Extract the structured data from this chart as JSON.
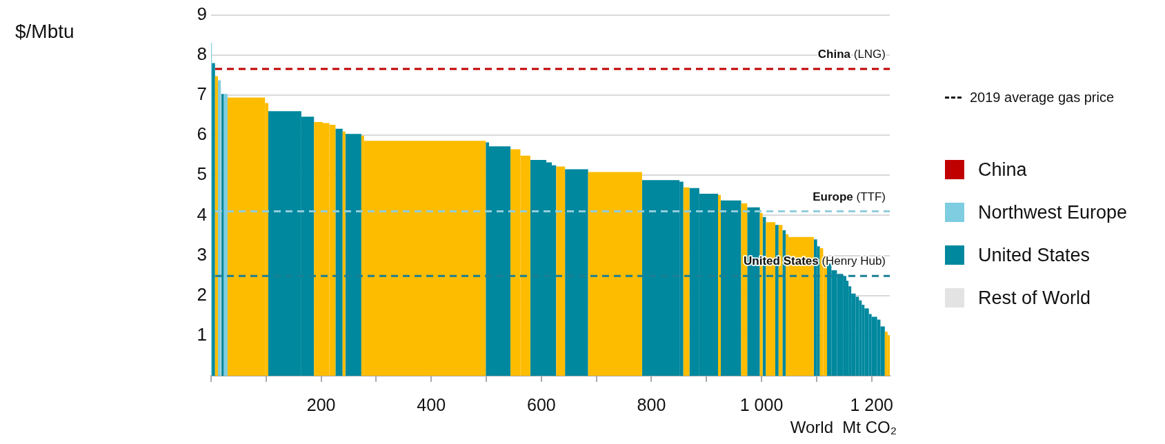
{
  "chart_data": {
    "type": "histogram",
    "annotations": [
      "$/Mbtu",
      "China"
    ],
    "xlabel": "World  Mt CO₂",
    "legend_title": "2019 average gas price",
    "legend": "right",
    "grid": "y",
    "bins": [
      0,
      1.5,
      7.2,
      12.5,
      17.5,
      18.5,
      23,
      30,
      98,
      104,
      164,
      187,
      203,
      215,
      226,
      239,
      244,
      273,
      278,
      499,
      505,
      544,
      562,
      580,
      609,
      619,
      627,
      643,
      685,
      783,
      851,
      858,
      869,
      887,
      921,
      926,
      963,
      974,
      997,
      1002,
      1008,
      1025,
      1031,
      1038,
      1044,
      1049,
      1095,
      1101,
      1106,
      1112,
      1119,
      1127,
      1137,
      1148,
      1154,
      1158,
      1163,
      1171,
      1177,
      1182,
      1187,
      1195,
      1200,
      1210,
      1216,
      1224,
      1229,
      1233
    ],
    "xlim": [
      0,
      1233
    ],
    "xticks": [
      {
        "value": 0,
        "label": null
      },
      {
        "value": 100,
        "label": null
      },
      200,
      {
        "value": 300,
        "label": null
      },
      400,
      {
        "value": 500,
        "label": null
      },
      600,
      {
        "value": 700,
        "label": null
      },
      800,
      {
        "value": 900,
        "label": null
      },
      {
        "value": 1000,
        "label": "1 000"
      },
      {
        "value": 1100,
        "label": null
      },
      {
        "value": 1200,
        "label": "1 200"
      }
    ],
    "ylim": [
      0,
      9
    ],
    "yticks": [
      1,
      2,
      3,
      4,
      5,
      6,
      7,
      8,
      9
    ],
    "series": [
      {
        "name": "Northwest Europe",
        "color": "#7ecde0",
        "values": [
          8.3,
          null,
          null,
          7.37,
          null,
          null,
          7.03,
          null,
          null,
          null,
          null,
          null,
          null,
          null,
          null,
          null,
          null,
          null,
          null,
          null,
          null,
          null,
          null,
          null,
          null,
          null,
          null,
          null,
          null,
          null,
          null,
          null,
          null,
          null,
          null,
          null,
          null,
          null,
          null,
          null,
          null,
          null,
          null,
          null,
          null,
          null,
          null,
          null,
          null,
          null,
          null,
          null,
          null,
          null,
          null,
          null,
          null,
          null,
          null,
          null,
          null,
          null,
          null,
          null,
          null,
          null,
          null
        ]
      },
      {
        "name": "United States",
        "color": "#00889e",
        "values": [
          null,
          7.8,
          null,
          null,
          null,
          7.03,
          null,
          null,
          null,
          6.6,
          6.46,
          null,
          null,
          null,
          6.16,
          null,
          6.03,
          null,
          null,
          5.82,
          5.72,
          null,
          null,
          5.38,
          5.32,
          5.25,
          null,
          5.15,
          null,
          4.88,
          4.84,
          null,
          4.68,
          4.54,
          null,
          4.37,
          null,
          4.2,
          null,
          3.96,
          null,
          3.76,
          null,
          3.63,
          null,
          null,
          3.4,
          3.23,
          null,
          null,
          2.8,
          2.63,
          2.54,
          2.49,
          2.37,
          2.23,
          2.05,
          1.97,
          1.88,
          1.77,
          1.68,
          1.54,
          1.47,
          1.4,
          1.23,
          null,
          null
        ]
      },
      {
        "name": "Rest of World",
        "color": "#e3e3e3",
        "values": [
          null,
          null,
          null,
          null,
          7.2,
          null,
          null,
          null,
          null,
          null,
          null,
          null,
          null,
          null,
          null,
          null,
          null,
          null,
          null,
          null,
          null,
          null,
          null,
          null,
          null,
          null,
          null,
          null,
          null,
          null,
          null,
          null,
          null,
          null,
          null,
          null,
          null,
          null,
          null,
          null,
          null,
          null,
          null,
          null,
          null,
          null,
          null,
          null,
          null,
          null,
          null,
          null,
          null,
          null,
          null,
          null,
          null,
          null,
          null,
          null,
          null,
          null,
          null,
          null,
          null,
          null,
          null
        ]
      },
      {
        "color": "#fdbc00",
        "values": [
          null,
          null,
          7.47,
          null,
          null,
          null,
          null,
          6.94,
          6.8,
          null,
          null,
          6.33,
          6.3,
          6.26,
          null,
          6.09,
          null,
          5.99,
          5.86,
          null,
          null,
          5.65,
          5.49,
          null,
          null,
          null,
          5.22,
          null,
          5.08,
          null,
          null,
          4.7,
          null,
          null,
          4.51,
          null,
          4.3,
          null,
          4.06,
          null,
          3.83,
          null,
          3.76,
          null,
          3.53,
          3.46,
          null,
          null,
          3.18,
          2.99,
          null,
          null,
          null,
          null,
          null,
          null,
          null,
          null,
          null,
          null,
          null,
          null,
          null,
          null,
          null,
          1.1,
          1.01
        ]
      }
    ],
    "ref_lines": [
      {
        "axis": "y",
        "value": 7.65,
        "label": "China (LNG)",
        "color": "#c00000",
        "line_style": "dashed"
      },
      {
        "axis": "y",
        "value": 4.1,
        "label": "Europe (TTF)",
        "color": "#92cddc",
        "line_style": "dashed"
      },
      {
        "axis": "y",
        "value": 2.49,
        "label": "United States (Henry Hub)",
        "color": "#1b7f95",
        "line_style": "dashed"
      }
    ]
  }
}
